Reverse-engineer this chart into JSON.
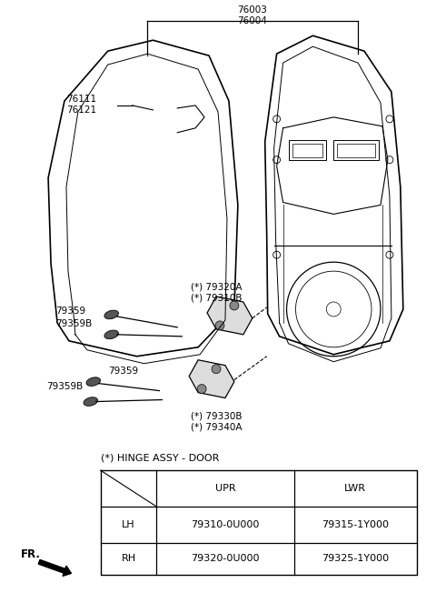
{
  "bg_color": "#ffffff",
  "line_color": "#000000",
  "text_color": "#000000",
  "label_76003": "76003",
  "label_76004": "76004",
  "label_76111": "76111",
  "label_76121": "76121",
  "label_79320A": "(*) 79320A",
  "label_79310B": "(*) 79310B",
  "label_79359_u": "79359",
  "label_79359B_u": "79359B",
  "label_79359_l": "79359",
  "label_79359B_l": "79359B",
  "label_79330B": "(*) 79330B",
  "label_79340A": "(*) 79340A",
  "table_title": "(*) HINGE ASSY - DOOR",
  "table_header": [
    "",
    "UPR",
    "LWR"
  ],
  "table_row1": [
    "LH",
    "79310-0U000",
    "79315-1Y000"
  ],
  "table_row2": [
    "RH",
    "79320-0U000",
    "79325-1Y000"
  ],
  "fr_label": "FR."
}
